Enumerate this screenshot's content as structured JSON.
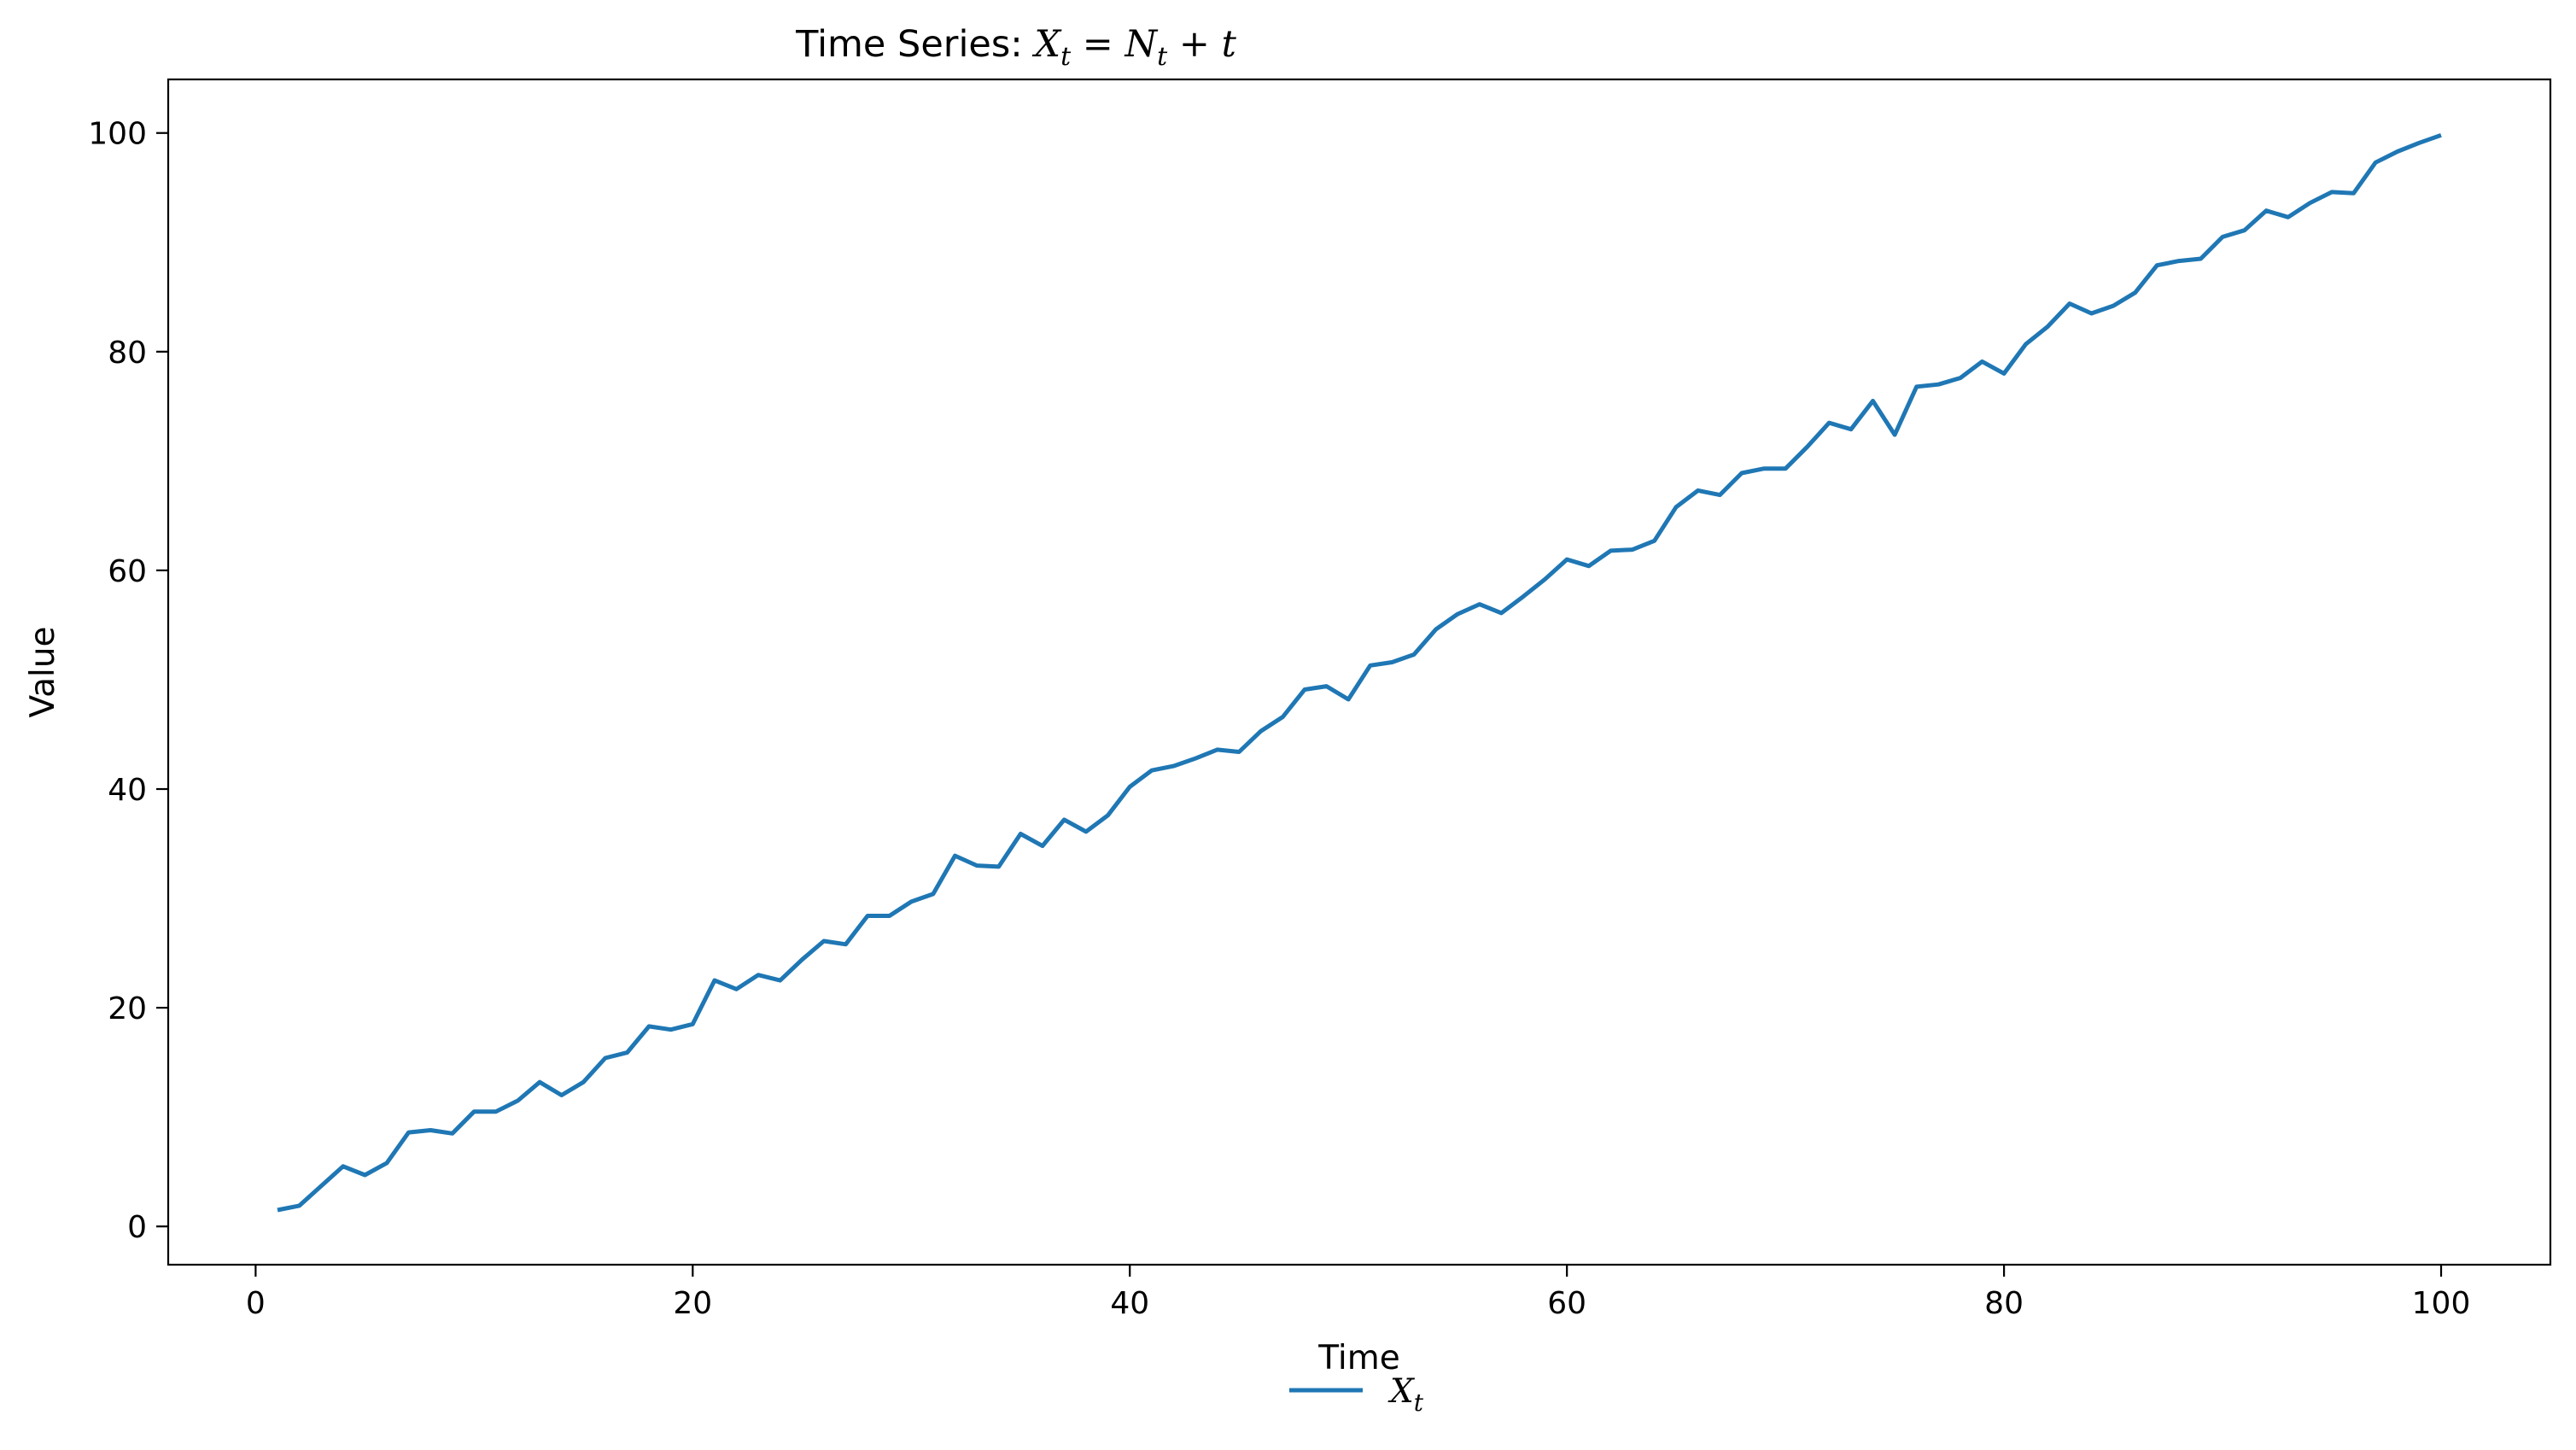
{
  "chart_data": {
    "type": "line",
    "title_prefix": "Time Series: ",
    "title_math": {
      "X": "X",
      "t": "t",
      "eq": " = ",
      "N": "N",
      "plus": " + "
    },
    "xlabel": "Time",
    "ylabel": "Value",
    "xlim": [
      -4,
      105
    ],
    "ylim": [
      -3.5,
      104.9
    ],
    "x_ticks": [
      0,
      20,
      40,
      60,
      80,
      100
    ],
    "y_ticks": [
      0,
      20,
      40,
      60,
      80,
      100
    ],
    "grid": false,
    "legend_position": "bottom-center",
    "series": [
      {
        "name_main": "X",
        "name_sub": "t",
        "color": "#1f77b4",
        "x": [
          1,
          2,
          3,
          4,
          5,
          6,
          7,
          8,
          9,
          10,
          11,
          12,
          13,
          14,
          15,
          16,
          17,
          18,
          19,
          20,
          21,
          22,
          23,
          24,
          25,
          26,
          27,
          28,
          29,
          30,
          31,
          32,
          33,
          34,
          35,
          36,
          37,
          38,
          39,
          40,
          41,
          42,
          43,
          44,
          45,
          46,
          47,
          48,
          49,
          50,
          51,
          52,
          53,
          54,
          55,
          56,
          57,
          58,
          59,
          60,
          61,
          62,
          63,
          64,
          65,
          66,
          67,
          68,
          69,
          70,
          71,
          72,
          73,
          74,
          75,
          76,
          77,
          78,
          79,
          80,
          81,
          82,
          83,
          84,
          85,
          86,
          87,
          88,
          89,
          90,
          91,
          92,
          93,
          94,
          95,
          96,
          97,
          98,
          99,
          100
        ],
        "y": [
          1.5,
          1.9,
          3.7,
          5.5,
          4.7,
          5.8,
          8.6,
          8.8,
          8.5,
          10.5,
          10.5,
          11.5,
          13.2,
          12.0,
          13.2,
          15.4,
          15.9,
          18.3,
          18.0,
          18.5,
          22.5,
          21.7,
          23.0,
          22.5,
          24.4,
          26.1,
          25.8,
          28.4,
          28.4,
          29.7,
          30.4,
          33.9,
          33.0,
          32.9,
          35.9,
          34.8,
          37.2,
          36.1,
          37.6,
          40.2,
          41.7,
          42.1,
          42.8,
          43.6,
          43.4,
          45.3,
          46.6,
          49.1,
          49.4,
          48.2,
          51.3,
          51.6,
          52.3,
          54.6,
          56.0,
          56.9,
          56.1,
          57.6,
          59.2,
          61.0,
          60.4,
          61.8,
          61.9,
          62.7,
          65.8,
          67.3,
          66.9,
          68.9,
          69.3,
          69.3,
          71.3,
          73.5,
          72.9,
          75.5,
          72.4,
          76.8,
          77.0,
          77.6,
          79.1,
          78.0,
          80.7,
          82.3,
          84.4,
          83.5,
          84.2,
          85.4,
          87.9,
          88.3,
          88.5,
          90.5,
          91.1,
          92.9,
          92.3,
          93.6,
          94.6,
          94.5,
          97.3,
          98.3,
          99.1,
          99.8
        ]
      }
    ]
  }
}
